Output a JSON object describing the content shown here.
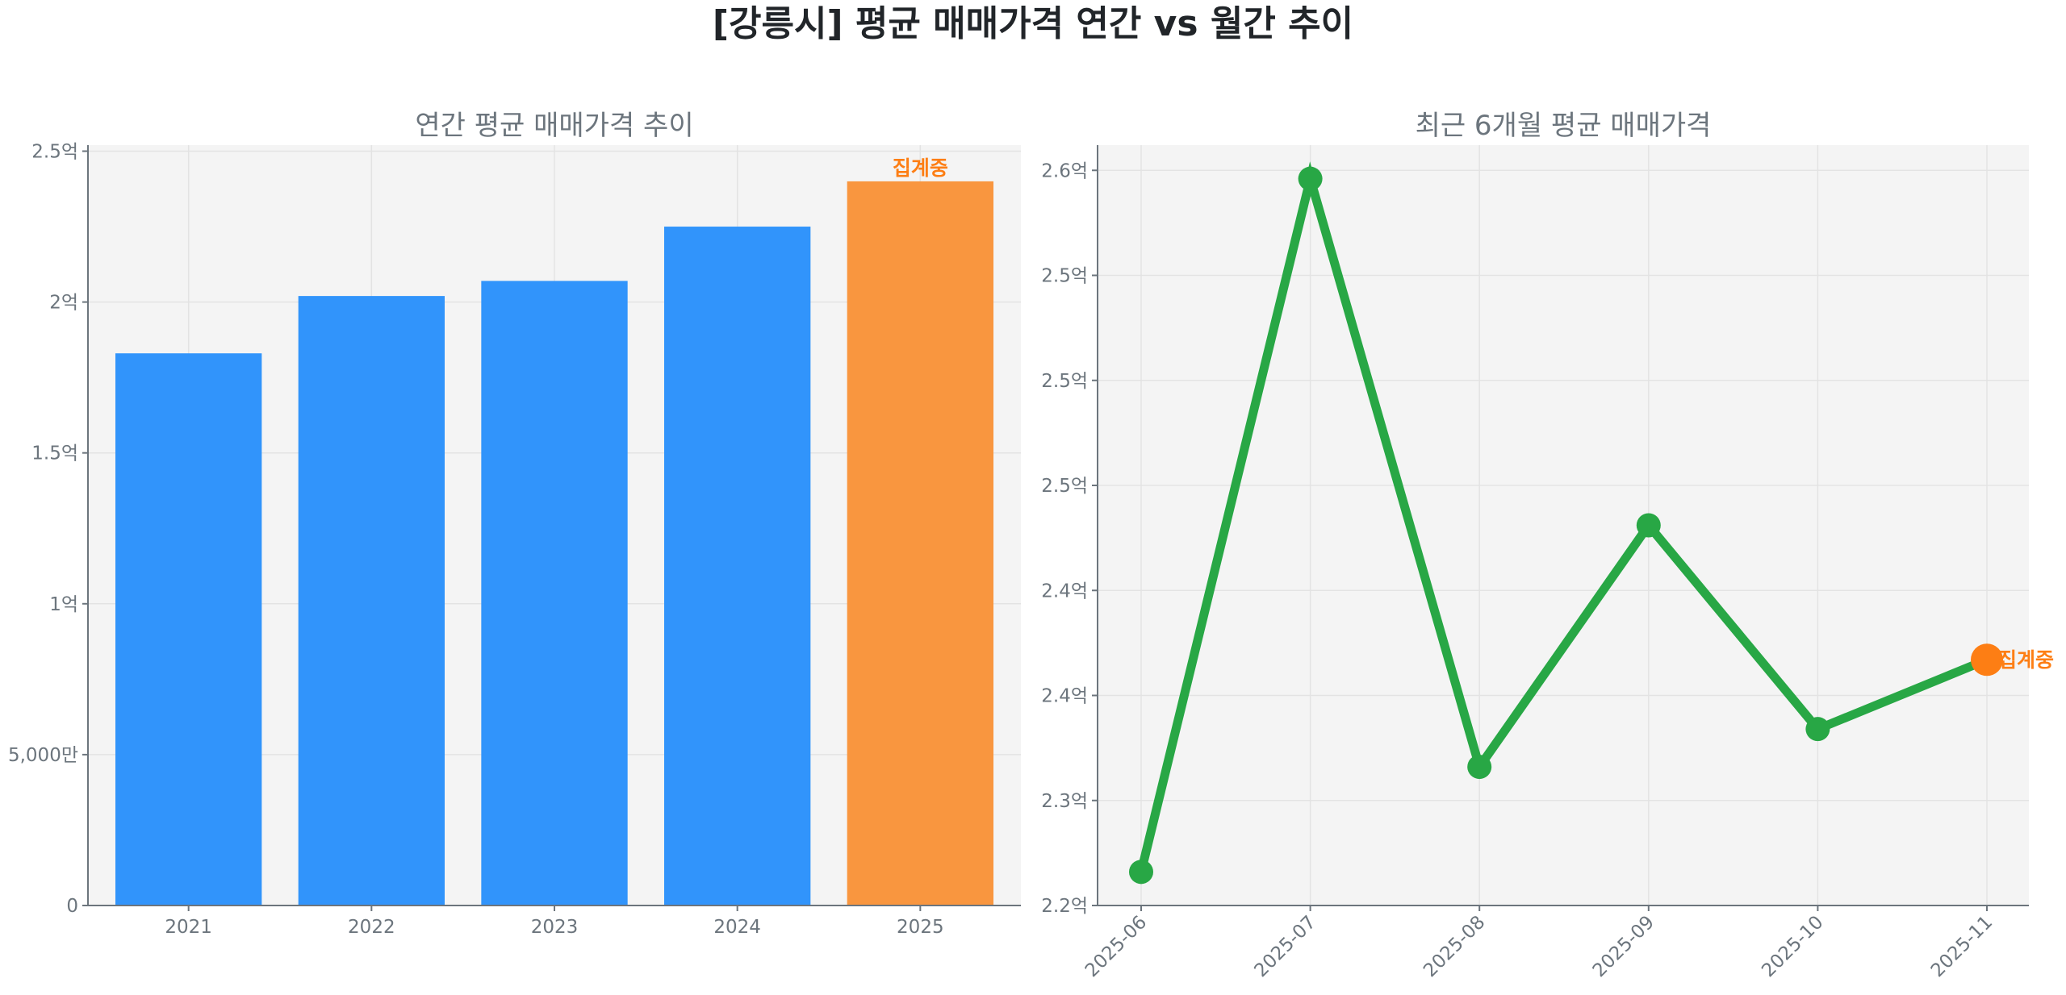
{
  "title": "[강릉시] 평균 매매가격 연간 vs 월간 추이",
  "colors": {
    "bar": "#3194fb",
    "bar_partial": "#f9963f",
    "line": "#28a745",
    "partial_point": "#fd7e14",
    "plot_bg": "#f4f4f4"
  },
  "chart_data": [
    {
      "type": "bar",
      "title": "연간 평균 매매가격 추이",
      "categories": [
        "2021",
        "2022",
        "2023",
        "2024",
        "2025"
      ],
      "values": [
        1.83,
        2.02,
        2.07,
        2.25,
        2.4
      ],
      "unit": "억",
      "ylim": [
        0,
        2.52
      ],
      "yticks": [
        0,
        0.5,
        1,
        1.5,
        2,
        2.5
      ],
      "ytick_labels": [
        "0",
        "5,000만",
        "1억",
        "1.5억",
        "2억",
        "2.5억"
      ],
      "partial_index": 4,
      "annotation": "집계중",
      "grid": true
    },
    {
      "type": "line",
      "title": "최근 6개월 평균 매매가격",
      "categories": [
        "2025-06",
        "2025-07",
        "2025-08",
        "2025-09",
        "2025-10",
        "2025-11"
      ],
      "values": [
        2.266,
        2.596,
        2.316,
        2.431,
        2.334,
        2.367
      ],
      "unit": "억",
      "ylim": [
        2.25,
        2.612
      ],
      "yticks": [
        2.25,
        2.3,
        2.35,
        2.4,
        2.45,
        2.5,
        2.55,
        2.6
      ],
      "ytick_labels": [
        "2.2억",
        "2.3억",
        "2.4억",
        "2.4억",
        "2.5억",
        "2.5억",
        "2.5억",
        "2.6억"
      ],
      "partial_index": 5,
      "annotation": "집계중",
      "grid": true
    }
  ]
}
